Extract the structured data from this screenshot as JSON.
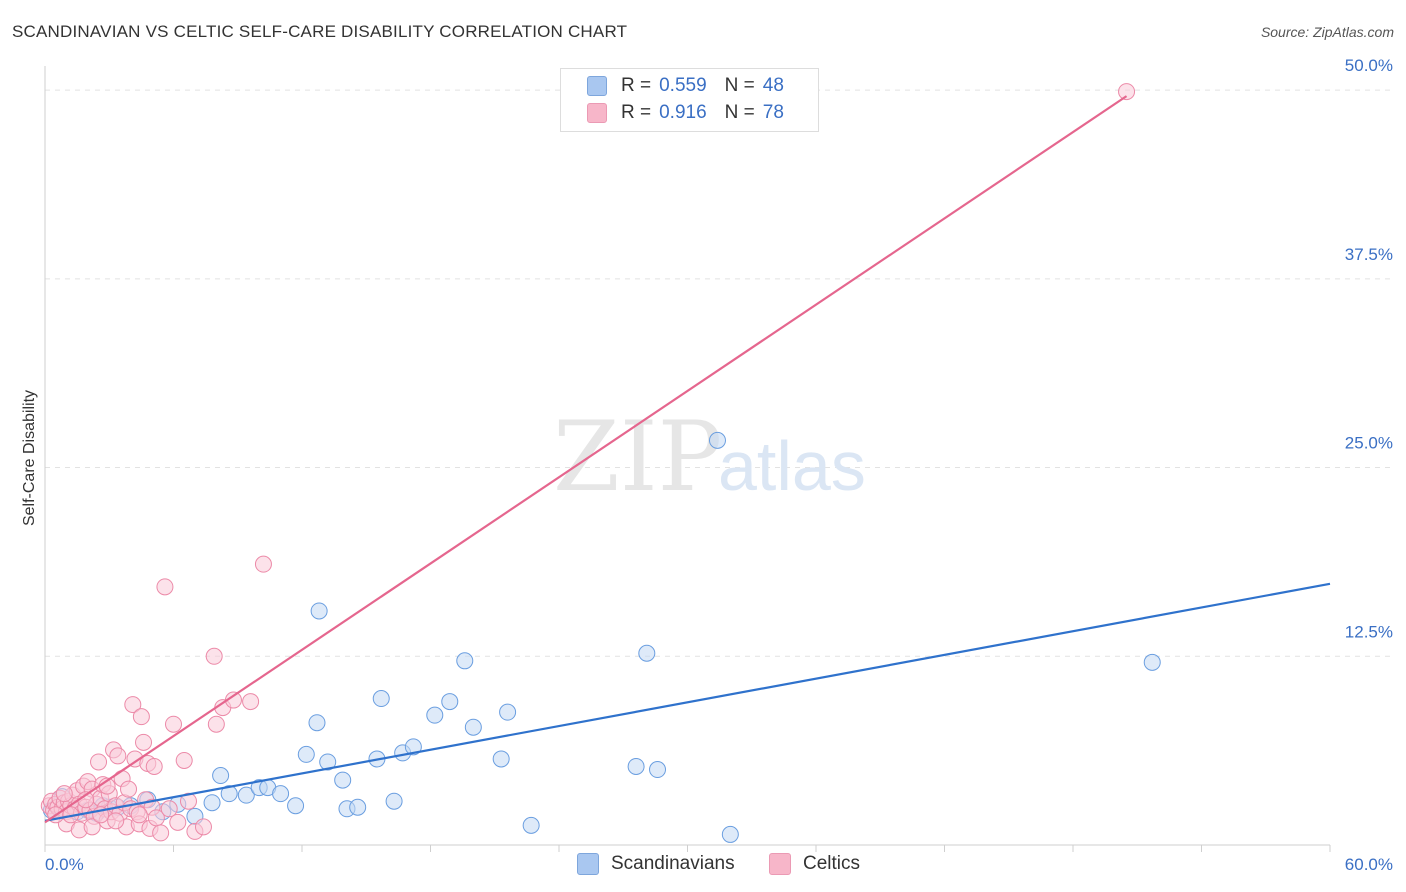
{
  "header": {
    "title": "SCANDINAVIAN VS CELTIC SELF-CARE DISABILITY CORRELATION CHART",
    "source": "Source: ZipAtlas.com"
  },
  "watermark": {
    "zip": "ZIP",
    "atlas": "atlas"
  },
  "legend": {
    "rows": [
      {
        "r_label": "R =",
        "r_value": "0.559",
        "n_label": "N =",
        "n_value": "48",
        "color": "#a9c7f0"
      },
      {
        "r_label": "R =",
        "r_value": "0.916",
        "n_label": "N =",
        "n_value": "78",
        "color": "#f7b6c9"
      }
    ]
  },
  "bottom_legend": [
    {
      "label": "Scandinavians",
      "color": "#a9c7f0"
    },
    {
      "label": "Celtics",
      "color": "#f7b6c9"
    }
  ],
  "chart_data": {
    "type": "scatter",
    "title": "SCANDINAVIAN VS CELTIC SELF-CARE DISABILITY CORRELATION CHART",
    "xlabel": "",
    "ylabel": "Self-Care Disability",
    "xlim": [
      0,
      60
    ],
    "ylim": [
      0,
      51
    ],
    "x_tick_labels": [
      "0.0%",
      "60.0%"
    ],
    "y_ticks": [
      12.5,
      25.0,
      37.5,
      50.0
    ],
    "y_tick_labels": [
      "12.5%",
      "25.0%",
      "37.5%",
      "50.0%"
    ],
    "grid": true,
    "series": [
      {
        "name": "Scandinavians",
        "color": "#6a9ee0",
        "fill": "#c3d8f4",
        "line_color": "#2f72cc",
        "trend": {
          "x": [
            0,
            60
          ],
          "y": [
            1.6,
            17.3
          ]
        },
        "points": [
          [
            0.3,
            2.3
          ],
          [
            0.6,
            2.6
          ],
          [
            1.0,
            2.4
          ],
          [
            1.5,
            2.2
          ],
          [
            2.0,
            2.3
          ],
          [
            2.4,
            2.1
          ],
          [
            2.7,
            2.6
          ],
          [
            3.0,
            2.5
          ],
          [
            3.4,
            2.5
          ],
          [
            4.0,
            2.6
          ],
          [
            4.8,
            3.0
          ],
          [
            5.5,
            2.2
          ],
          [
            6.2,
            2.7
          ],
          [
            7.0,
            1.9
          ],
          [
            7.8,
            2.8
          ],
          [
            8.2,
            4.6
          ],
          [
            8.6,
            3.4
          ],
          [
            9.4,
            3.3
          ],
          [
            10.0,
            3.8
          ],
          [
            10.4,
            3.8
          ],
          [
            11.0,
            3.4
          ],
          [
            11.7,
            2.6
          ],
          [
            12.2,
            6.0
          ],
          [
            12.7,
            8.1
          ],
          [
            12.8,
            15.5
          ],
          [
            13.2,
            5.5
          ],
          [
            13.9,
            4.3
          ],
          [
            14.1,
            2.4
          ],
          [
            14.6,
            2.5
          ],
          [
            15.5,
            5.7
          ],
          [
            15.7,
            9.7
          ],
          [
            16.3,
            2.9
          ],
          [
            16.7,
            6.1
          ],
          [
            17.2,
            6.5
          ],
          [
            18.2,
            8.6
          ],
          [
            18.9,
            9.5
          ],
          [
            19.6,
            12.2
          ],
          [
            20.0,
            7.8
          ],
          [
            21.3,
            5.7
          ],
          [
            21.6,
            8.8
          ],
          [
            22.7,
            1.3
          ],
          [
            27.6,
            5.2
          ],
          [
            28.1,
            12.7
          ],
          [
            28.6,
            5.0
          ],
          [
            31.4,
            26.8
          ],
          [
            32.0,
            0.7
          ],
          [
            51.7,
            12.1
          ],
          [
            0.8,
            3.2
          ]
        ]
      },
      {
        "name": "Celtics",
        "color": "#ec8aa8",
        "fill": "#f9cad8",
        "line_color": "#e5668e",
        "trend": {
          "x": [
            0,
            50.5
          ],
          "y": [
            1.5,
            49.6
          ]
        },
        "points": [
          [
            0.2,
            2.6
          ],
          [
            0.3,
            2.9
          ],
          [
            0.4,
            2.3
          ],
          [
            0.5,
            2.7
          ],
          [
            0.6,
            2.5
          ],
          [
            0.7,
            3.1
          ],
          [
            0.8,
            2.4
          ],
          [
            0.9,
            2.8
          ],
          [
            1.0,
            2.2
          ],
          [
            1.1,
            2.9
          ],
          [
            1.2,
            2.6
          ],
          [
            1.3,
            3.3
          ],
          [
            1.4,
            2.4
          ],
          [
            1.5,
            3.6
          ],
          [
            1.6,
            2.7
          ],
          [
            1.7,
            2.1
          ],
          [
            1.8,
            3.9
          ],
          [
            1.9,
            2.5
          ],
          [
            2.0,
            4.2
          ],
          [
            2.1,
            2.3
          ],
          [
            2.2,
            3.7
          ],
          [
            2.3,
            1.9
          ],
          [
            2.4,
            2.7
          ],
          [
            2.5,
            5.5
          ],
          [
            2.6,
            3.1
          ],
          [
            2.7,
            4.0
          ],
          [
            2.8,
            2.4
          ],
          [
            2.9,
            1.6
          ],
          [
            3.0,
            3.4
          ],
          [
            3.1,
            2.2
          ],
          [
            3.2,
            6.3
          ],
          [
            3.3,
            2.6
          ],
          [
            3.4,
            5.9
          ],
          [
            3.5,
            2.1
          ],
          [
            3.6,
            4.4
          ],
          [
            3.7,
            2.8
          ],
          [
            3.8,
            1.2
          ],
          [
            3.9,
            3.7
          ],
          [
            4.0,
            2.4
          ],
          [
            4.1,
            9.3
          ],
          [
            4.2,
            5.7
          ],
          [
            4.3,
            2.2
          ],
          [
            4.4,
            1.4
          ],
          [
            4.5,
            8.5
          ],
          [
            4.6,
            6.8
          ],
          [
            4.7,
            3.0
          ],
          [
            4.8,
            5.4
          ],
          [
            4.9,
            1.1
          ],
          [
            5.0,
            2.5
          ],
          [
            5.1,
            5.2
          ],
          [
            5.2,
            1.8
          ],
          [
            5.4,
            0.8
          ],
          [
            5.6,
            17.1
          ],
          [
            5.8,
            2.4
          ],
          [
            6.0,
            8.0
          ],
          [
            6.2,
            1.5
          ],
          [
            6.5,
            5.6
          ],
          [
            6.7,
            2.9
          ],
          [
            7.0,
            0.9
          ],
          [
            7.4,
            1.2
          ],
          [
            7.9,
            12.5
          ],
          [
            8.0,
            8.0
          ],
          [
            8.3,
            9.1
          ],
          [
            8.8,
            9.6
          ],
          [
            9.6,
            9.5
          ],
          [
            10.2,
            18.6
          ],
          [
            1.0,
            1.4
          ],
          [
            1.6,
            1.0
          ],
          [
            2.2,
            1.2
          ],
          [
            0.5,
            2.0
          ],
          [
            1.2,
            2.0
          ],
          [
            2.6,
            2.0
          ],
          [
            3.3,
            1.6
          ],
          [
            4.4,
            2.0
          ],
          [
            0.9,
            3.4
          ],
          [
            1.9,
            3.0
          ],
          [
            2.9,
            3.9
          ],
          [
            50.5,
            49.9
          ]
        ]
      }
    ]
  }
}
